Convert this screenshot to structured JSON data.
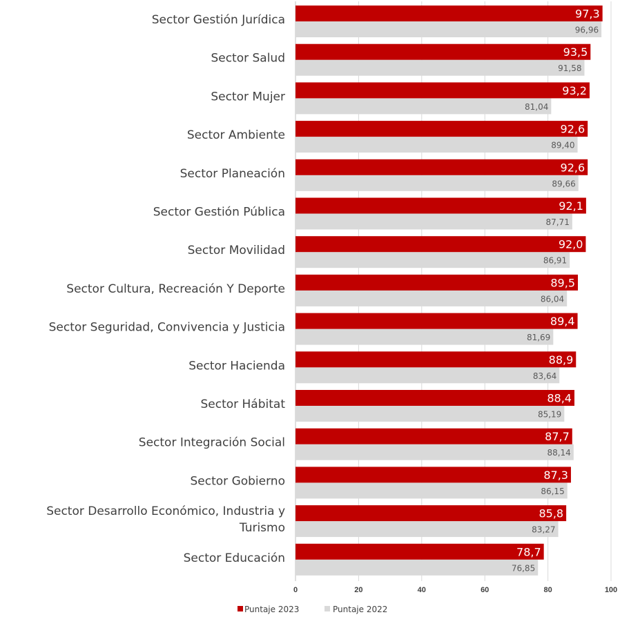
{
  "chart_data": {
    "type": "bar",
    "orientation": "horizontal",
    "categories": [
      "Sector Gestión Jurídica",
      "Sector Salud",
      "Sector Mujer",
      "Sector Ambiente",
      "Sector Planeación",
      "Sector Gestión Pública",
      "Sector Movilidad",
      "Sector Cultura, Recreación Y Deporte",
      "Sector Seguridad, Convivencia y Justicia",
      "Sector Hacienda",
      "Sector Hábitat",
      "Sector Integración Social",
      "Sector Gobierno",
      "Sector Desarrollo Económico, Industria y Turismo",
      "Sector Educación"
    ],
    "category_label_lines": [
      [
        "Sector Gestión Jurídica"
      ],
      [
        "Sector Salud"
      ],
      [
        "Sector Mujer"
      ],
      [
        "Sector Ambiente"
      ],
      [
        "Sector Planeación"
      ],
      [
        "Sector Gestión Pública"
      ],
      [
        "Sector Movilidad"
      ],
      [
        "Sector Cultura, Recreación Y Deporte"
      ],
      [
        "Sector Seguridad, Convivencia y Justicia"
      ],
      [
        "Sector Hacienda"
      ],
      [
        "Sector Hábitat"
      ],
      [
        "Sector Integración Social"
      ],
      [
        "Sector Gobierno"
      ],
      [
        "Sector Desarrollo Económico, Industria y",
        "Turismo"
      ],
      [
        "Sector Educación"
      ]
    ],
    "series": [
      {
        "name": "Puntaje 2023",
        "color": "#C00000",
        "values": [
          97.3,
          93.5,
          93.2,
          92.6,
          92.6,
          92.1,
          92.0,
          89.5,
          89.4,
          88.9,
          88.4,
          87.7,
          87.3,
          85.8,
          78.7
        ],
        "labels": [
          "97,3",
          "93,5",
          "93,2",
          "92,6",
          "92,6",
          "92,1",
          "92,0",
          "89,5",
          "89,4",
          "88,9",
          "88,4",
          "87,7",
          "87,3",
          "85,8",
          "78,7"
        ]
      },
      {
        "name": "Puntaje 2022",
        "color": "#D9D9D9",
        "values": [
          96.96,
          91.58,
          81.04,
          89.4,
          89.66,
          87.71,
          86.91,
          86.04,
          81.69,
          83.64,
          85.19,
          88.14,
          86.15,
          83.27,
          76.85
        ],
        "labels": [
          "96,96",
          "91,58",
          "81,04",
          "89,40",
          "89,66",
          "87,71",
          "86,91",
          "86,04",
          "81,69",
          "83,64",
          "85,19",
          "88,14",
          "86,15",
          "83,27",
          "76,85"
        ]
      }
    ],
    "xlim": [
      0,
      100
    ],
    "xticks": [
      "0",
      "20",
      "40",
      "60",
      "80",
      "100"
    ],
    "grid": true,
    "legend_position": "bottom",
    "title": "",
    "xlabel": "",
    "ylabel": ""
  }
}
